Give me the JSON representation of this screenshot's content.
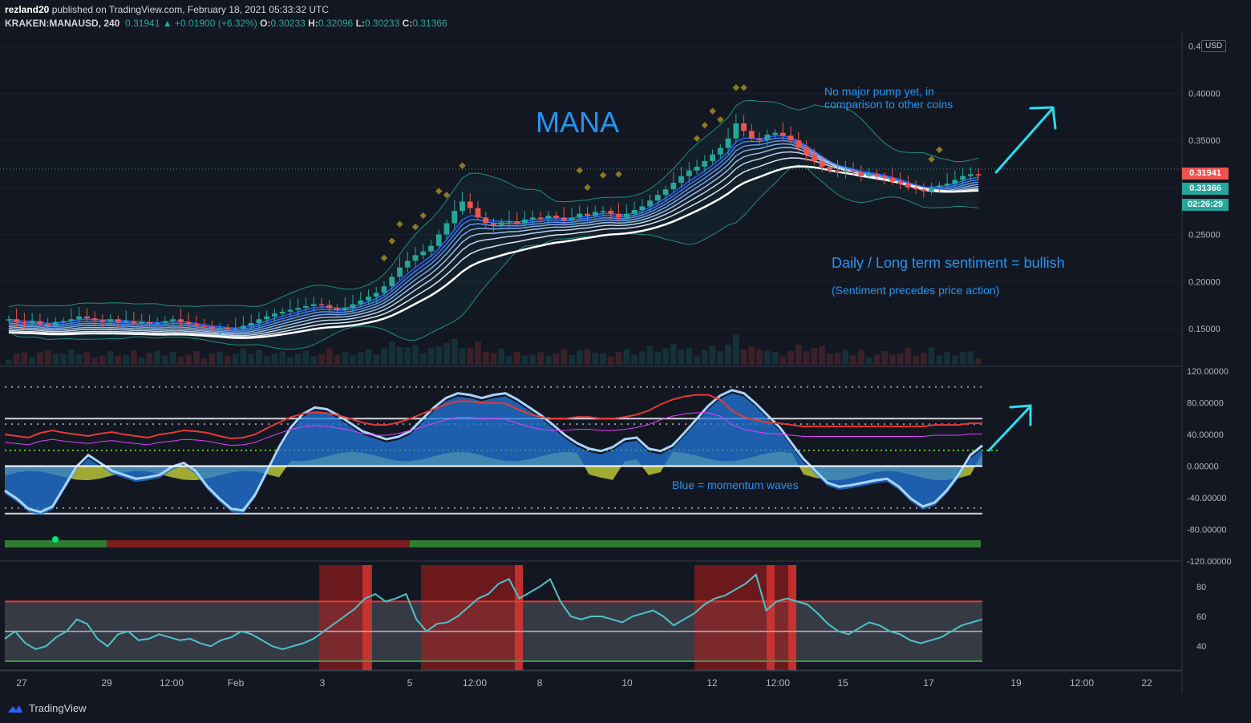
{
  "header": {
    "author": "rezland20",
    "published": " published on TradingView.com, February 18, 2021 05:33:32 UTC",
    "symbol": "KRAKEN:MANAUSD, 240",
    "last": "0.31941",
    "arrow": "▲",
    "change": "+0.01900 (+6.32%)",
    "o_label": "O:",
    "o": "0.30233",
    "h_label": "H:",
    "h": "0.32096",
    "l_label": "L:",
    "l": "0.30233",
    "c_label": "C:",
    "c": "0.31366"
  },
  "price_tags": {
    "last": "0.31941",
    "close": "0.31366",
    "countdown": "02:26:29",
    "currency": "USD"
  },
  "annotations": {
    "title": "MANA",
    "note1_line1": "No major pump yet, in",
    "note1_line2": "comparison to other coins",
    "sentiment": "Daily / Long term sentiment = bullish",
    "sentiment_sub": "(Sentiment precedes price action)",
    "momentum": "Blue = momentum waves"
  },
  "footer": {
    "brand": "TradingView"
  },
  "colors": {
    "background": "#131722",
    "up": "#26a69a",
    "down": "#ef5350",
    "annotation": "#2196f3",
    "arrow": "#26e0f0",
    "rsi_line": "#4dc3c9",
    "grid": "#2a2e39"
  },
  "chart_data": [
    {
      "type": "candlestick",
      "pane": "price",
      "y_axis_ticks": [
        "0.45000",
        "0.40000",
        "0.35000",
        "0.30000",
        "0.25000",
        "0.20000",
        "0.15000"
      ],
      "ylim": [
        0.11,
        0.465
      ],
      "x_ticks": [
        "27",
        "29",
        "12:00",
        "Feb",
        "3",
        "5",
        "12:00",
        "8",
        "10",
        "12",
        "12:00",
        "15",
        "17",
        "19",
        "12:00",
        "22"
      ],
      "close_series": [
        0.16,
        0.157,
        0.156,
        0.158,
        0.155,
        0.153,
        0.157,
        0.158,
        0.16,
        0.163,
        0.161,
        0.159,
        0.158,
        0.16,
        0.157,
        0.158,
        0.156,
        0.157,
        0.155,
        0.156,
        0.158,
        0.16,
        0.157,
        0.155,
        0.153,
        0.152,
        0.15,
        0.151,
        0.149,
        0.15,
        0.153,
        0.156,
        0.16,
        0.163,
        0.166,
        0.168,
        0.17,
        0.172,
        0.174,
        0.176,
        0.175,
        0.172,
        0.17,
        0.172,
        0.176,
        0.18,
        0.184,
        0.188,
        0.195,
        0.205,
        0.215,
        0.222,
        0.228,
        0.232,
        0.238,
        0.25,
        0.262,
        0.275,
        0.285,
        0.278,
        0.268,
        0.262,
        0.26,
        0.263,
        0.264,
        0.262,
        0.266,
        0.268,
        0.267,
        0.27,
        0.268,
        0.265,
        0.268,
        0.272,
        0.27,
        0.274,
        0.275,
        0.272,
        0.268,
        0.272,
        0.276,
        0.28,
        0.286,
        0.292,
        0.298,
        0.305,
        0.312,
        0.318,
        0.322,
        0.328,
        0.335,
        0.342,
        0.352,
        0.368,
        0.36,
        0.352,
        0.35,
        0.356,
        0.358,
        0.355,
        0.35,
        0.342,
        0.335,
        0.328,
        0.322,
        0.318,
        0.316,
        0.318,
        0.316,
        0.312,
        0.314,
        0.312,
        0.31,
        0.306,
        0.304,
        0.3,
        0.298,
        0.296,
        0.3,
        0.302,
        0.304,
        0.308,
        0.312,
        0.314,
        0.31366
      ],
      "last": 0.31941,
      "close": 0.31366
    },
    {
      "type": "line",
      "pane": "momentum",
      "y_axis_ticks": [
        "120.00000",
        "80.00000",
        "40.00000",
        "0.00000",
        "-40.00000",
        "-80.00000",
        "-120.00000"
      ],
      "ylim": [
        -120,
        120
      ],
      "levels": [
        60,
        53,
        -53,
        -60,
        100,
        20
      ],
      "wave": [
        -35,
        -45,
        -58,
        -62,
        -55,
        -30,
        -5,
        10,
        0,
        -10,
        -15,
        -20,
        -18,
        -15,
        -5,
        0,
        -10,
        -30,
        -45,
        -58,
        -60,
        -40,
        -10,
        20,
        45,
        62,
        70,
        68,
        60,
        50,
        40,
        35,
        30,
        33,
        40,
        55,
        70,
        82,
        88,
        86,
        82,
        86,
        88,
        80,
        70,
        60,
        48,
        35,
        25,
        18,
        15,
        20,
        30,
        32,
        18,
        15,
        22,
        38,
        55,
        72,
        85,
        92,
        88,
        75,
        60,
        45,
        25,
        5,
        -10,
        -25,
        -30,
        -28,
        -25,
        -22,
        -20,
        -30,
        -45,
        -55,
        -50,
        -35,
        -15,
        10,
        22
      ],
      "signal": [
        40,
        38,
        36,
        42,
        45,
        42,
        40,
        38,
        41,
        43,
        40,
        38,
        36,
        40,
        42,
        45,
        44,
        42,
        38,
        35,
        36,
        40,
        48,
        55,
        62,
        66,
        68,
        67,
        64,
        60,
        55,
        52,
        52,
        55,
        60,
        66,
        72,
        78,
        82,
        82,
        80,
        80,
        79,
        72,
        66,
        62,
        60,
        60,
        62,
        62,
        60,
        60,
        62,
        65,
        70,
        78,
        84,
        88,
        90,
        90,
        84,
        70,
        62,
        58,
        55,
        54,
        52,
        50,
        50,
        50,
        50,
        50,
        50,
        50,
        50,
        50,
        50,
        50,
        52,
        52,
        52,
        54,
        54
      ]
    },
    {
      "type": "line",
      "pane": "rsi",
      "y_axis_ticks": [
        "80",
        "60",
        "40"
      ],
      "ylim": [
        24,
        96
      ],
      "levels": [
        70,
        50,
        30
      ],
      "values": [
        45,
        50,
        42,
        38,
        40,
        46,
        50,
        58,
        55,
        45,
        40,
        48,
        50,
        44,
        45,
        48,
        46,
        44,
        45,
        42,
        40,
        44,
        46,
        50,
        48,
        44,
        40,
        38,
        40,
        42,
        45,
        50,
        55,
        60,
        65,
        72,
        75,
        70,
        72,
        75,
        58,
        50,
        55,
        56,
        60,
        66,
        72,
        75,
        82,
        85,
        72,
        76,
        80,
        85,
        70,
        60,
        58,
        60,
        60,
        58,
        56,
        60,
        62,
        64,
        60,
        54,
        58,
        62,
        68,
        72,
        74,
        78,
        82,
        88,
        64,
        70,
        72,
        70,
        68,
        62,
        55,
        50,
        48,
        52,
        56,
        54,
        50,
        48,
        44,
        42,
        44,
        46,
        50,
        54,
        56,
        58
      ]
    }
  ]
}
